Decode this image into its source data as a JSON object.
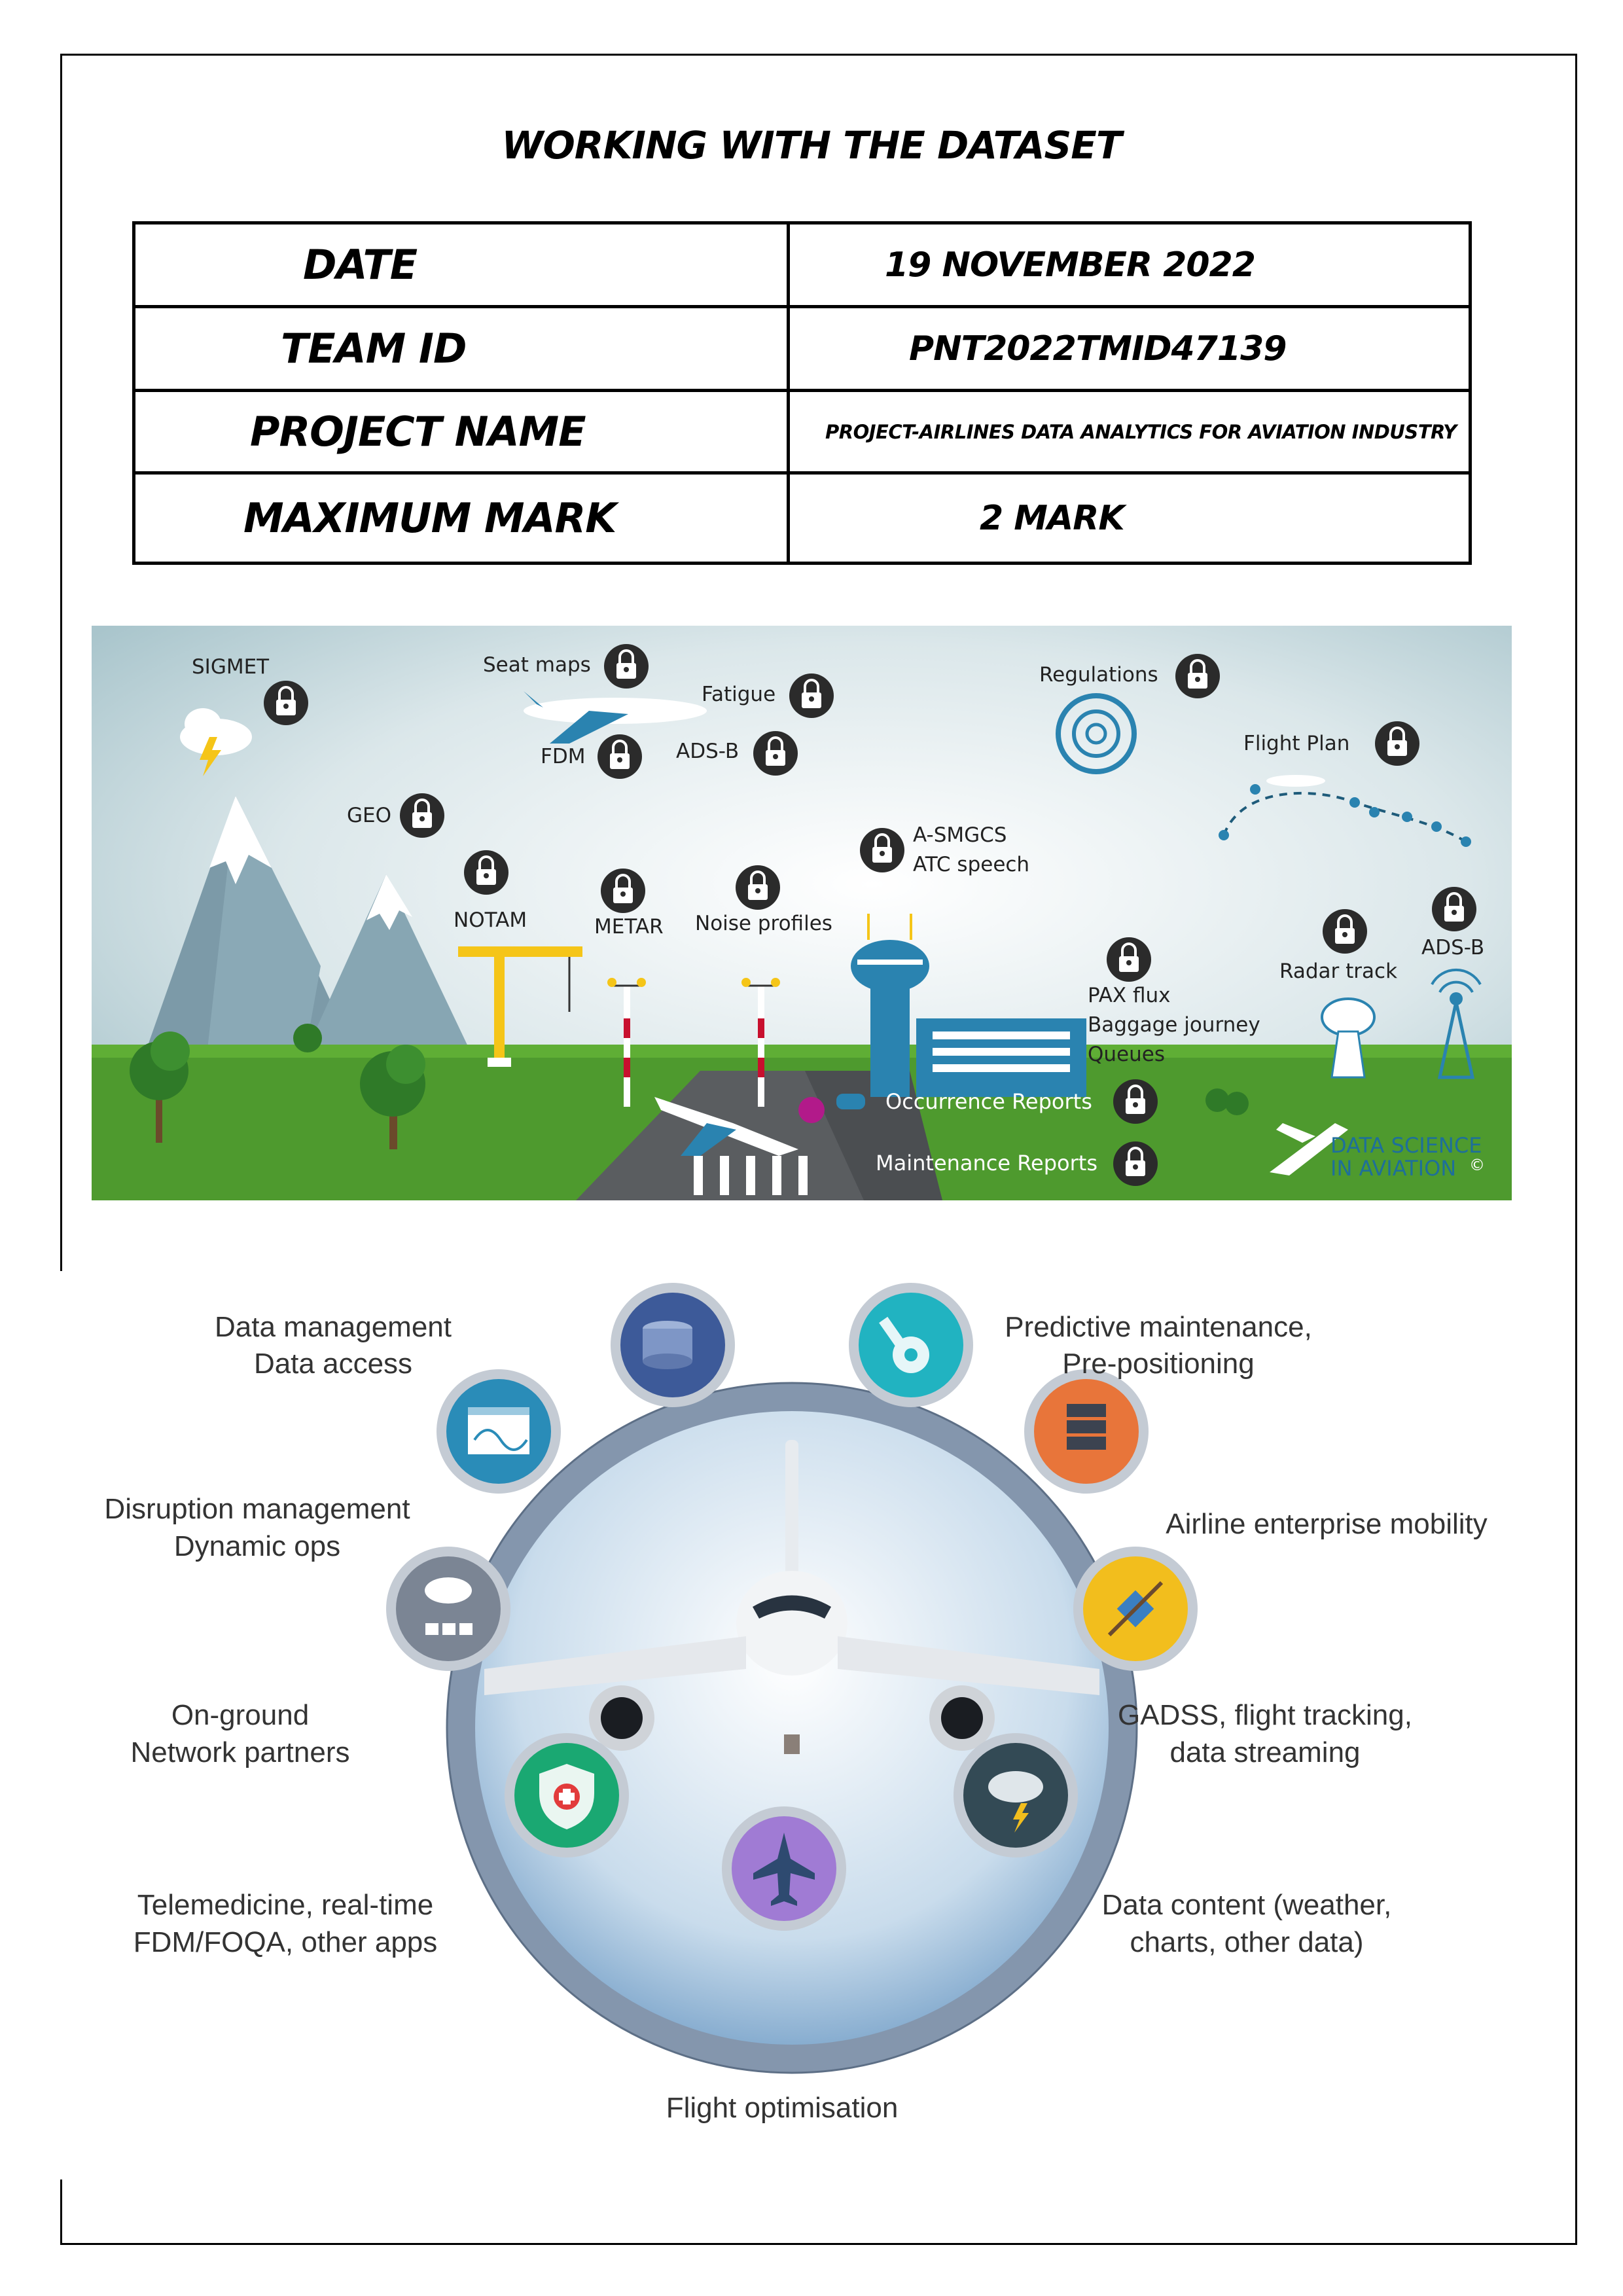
{
  "document": {
    "title": "WORKING WITH THE DATASET",
    "info_table": [
      {
        "key": "DATE",
        "value": "19 NOVEMBER 2022"
      },
      {
        "key": "TEAM ID",
        "value": "PNT2022TMID47139"
      },
      {
        "key": "PROJECT  NAME",
        "value": "PROJECT-AIRLINES DATA ANALYTICS FOR AVIATION INDUSTRY"
      },
      {
        "key": "MAXIMUM MARK",
        "value": "2 MARK"
      }
    ]
  },
  "infographic": {
    "labels": {
      "sigmet": "SIGMET",
      "seat_maps": "Seat maps",
      "fatigue": "Fatigue",
      "fdm": "FDM",
      "ads_b_top": "ADS-B",
      "regulations": "Regulations",
      "flight_plan": "Flight Plan",
      "geo": "GEO",
      "asmgcs": "A-SMGCS",
      "atc_speech": "ATC speech",
      "notam": "NOTAM",
      "metar": "METAR",
      "noise_profiles": "Noise profiles",
      "pax_flux": "PAX flux",
      "baggage_journey": "Baggage journey",
      "queues": "Queues",
      "radar_track": "Radar track",
      "ads_b_right": "ADS-B",
      "occurrence_reports": "Occurrence Reports",
      "maintenance_reports": "Maintenance Reports",
      "brand_line1": "DATA SCIENCE",
      "brand_line2": "IN AVIATION",
      "brand_copy": "©"
    },
    "colors": {
      "sky": "#c7dbe0",
      "grass": "#4e9a2e",
      "tower": "#2a83b0",
      "lock": "#2b2b2b"
    }
  },
  "connectivity": {
    "items": {
      "data_mgmt_1": "Data management",
      "data_mgmt_2": "Data access",
      "predictive_1": "Predictive maintenance,",
      "predictive_2": "Pre-positioning",
      "disruption_1": "Disruption management",
      "disruption_2": "Dynamic ops",
      "enterprise": "Airline enterprise mobility",
      "onground_1": "On-ground",
      "onground_2": "Network partners",
      "gadss_1": "GADSS, flight tracking,",
      "gadss_2": "data streaming",
      "telemed_1": "Telemedicine, real-time",
      "telemed_2": "FDM/FOQA, other apps",
      "content_1": "Data content (weather,",
      "content_2": "charts, other data)",
      "flight_opt": "Flight optimisation"
    },
    "icon_colors": {
      "navy": "#3d5a99",
      "teal": "#21b3c1",
      "blue": "#2a8cb8",
      "orange": "#e8753a",
      "slate": "#7b8594",
      "yellow": "#f2be1d",
      "green": "#1aa872",
      "dark": "#334a55",
      "purple": "#a07bd4"
    }
  }
}
